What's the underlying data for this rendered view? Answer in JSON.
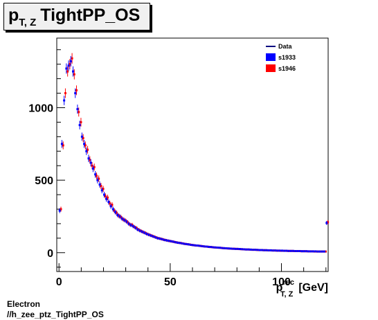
{
  "title": {
    "main": "p",
    "sub": "T, Z",
    "rest": "TightPP_OS"
  },
  "footer": {
    "line1": "Electron",
    "line2": "//h_zee_ptz_TightPP_OS"
  },
  "chart_data": {
    "type": "scatter",
    "xlabel": {
      "main": "p",
      "sup": "rec",
      "sub": "T, Z",
      "unit": "[GeV]"
    },
    "xlim": [
      -1,
      121
    ],
    "ylim": [
      -130,
      1480
    ],
    "x_ticks": [
      0,
      50,
      100
    ],
    "y_ticks": [
      0,
      500,
      1000
    ],
    "x_tick_labels": [
      "0",
      "50",
      "100"
    ],
    "y_tick_labels": [
      "0",
      "500",
      "1000"
    ],
    "legend": {
      "position": "top-right",
      "entries": [
        {
          "label": "Data",
          "style": "line",
          "color": "#000080"
        },
        {
          "label": "s1933",
          "style": "box",
          "color": "#0000ff"
        },
        {
          "label": "s1946",
          "style": "box",
          "color": "#ff0000"
        }
      ]
    },
    "series": [
      {
        "name": "s1933",
        "color": "#0000ff",
        "x": [
          0.5,
          1.5,
          2.5,
          3.5,
          4.5,
          5.5,
          6.5,
          7.5,
          8.5,
          9.5,
          10.5,
          11.5,
          12.5,
          13.5,
          14.5,
          15.5,
          16.5,
          17.5,
          18.5,
          19.5,
          20.5,
          21.5,
          22.5,
          23.5,
          24.5,
          25.5,
          26.5,
          27.5,
          28.5,
          29.5,
          30.5,
          31.5,
          32.5,
          33.5,
          34.5,
          35.5,
          36.5,
          37.5,
          38.5,
          39.5,
          40.5,
          41.5,
          42.5,
          43.5,
          44.5,
          45.5,
          46.5,
          47.5,
          48.5,
          49.5,
          50.5,
          51.5,
          52.5,
          53.5,
          54.5,
          55.5,
          56.5,
          57.5,
          58.5,
          59.5,
          60.5,
          61.5,
          62.5,
          63.5,
          64.5,
          65.5,
          66.5,
          67.5,
          68.5,
          69.5,
          70.5,
          71.5,
          72.5,
          73.5,
          74.5,
          75.5,
          76.5,
          77.5,
          78.5,
          79.5,
          80.5,
          81.5,
          82.5,
          83.5,
          84.5,
          85.5,
          86.5,
          87.5,
          88.5,
          89.5,
          90.5,
          91.5,
          92.5,
          93.5,
          94.5,
          95.5,
          96.5,
          97.5,
          98.5,
          99.5,
          100.5,
          101.5,
          102.5,
          103.5,
          104.5,
          105.5,
          106.5,
          107.5,
          108.5,
          109.5,
          110.5,
          111.5,
          112.5,
          113.5,
          114.5,
          115.5,
          116.5,
          117.5,
          118.5,
          119.5,
          120.5
        ],
        "values": [
          290,
          750,
          1050,
          1270,
          1290,
          1320,
          1250,
          1100,
          990,
          880,
          800,
          750,
          700,
          650,
          620,
          580,
          540,
          500,
          470,
          430,
          400,
          370,
          350,
          320,
          300,
          280,
          260,
          250,
          235,
          225,
          215,
          200,
          190,
          182,
          172,
          160,
          152,
          145,
          138,
          130,
          124,
          118,
          112,
          106,
          100,
          97,
          93,
          88,
          85,
          82,
          79,
          76,
          72,
          69,
          67,
          64,
          61,
          59,
          57,
          54,
          52,
          50,
          49,
          47,
          45,
          43,
          42,
          40,
          39,
          37,
          36,
          35,
          34,
          32,
          31,
          30,
          29,
          28,
          27,
          26,
          26,
          25,
          24,
          23,
          22,
          22,
          21,
          20,
          20,
          19,
          18,
          18,
          17,
          17,
          16,
          16,
          15,
          15,
          14,
          14,
          14,
          13,
          13,
          12,
          12,
          12,
          11,
          11,
          11,
          10,
          10,
          10,
          9,
          9,
          9,
          9,
          8,
          8,
          8,
          8,
          205
        ]
      },
      {
        "name": "s1946",
        "color": "#ff0000",
        "x": [
          0.5,
          1.5,
          2.5,
          3.5,
          4.5,
          5.5,
          6.5,
          7.5,
          8.5,
          9.5,
          10.5,
          11.5,
          12.5,
          13.5,
          14.5,
          15.5,
          16.5,
          17.5,
          18.5,
          19.5,
          20.5,
          21.5,
          22.5,
          23.5,
          24.5,
          25.5,
          26.5,
          27.5,
          28.5,
          29.5,
          30.5,
          31.5,
          32.5,
          33.5,
          34.5,
          35.5,
          36.5,
          37.5,
          38.5,
          39.5,
          40.5,
          41.5,
          42.5,
          43.5,
          44.5,
          45.5,
          46.5,
          47.5,
          48.5,
          49.5,
          50.5,
          51.5,
          52.5,
          53.5,
          54.5,
          55.5,
          56.5,
          57.5,
          58.5,
          59.5,
          60.5,
          61.5,
          62.5,
          63.5,
          64.5,
          65.5,
          66.5,
          67.5,
          68.5,
          69.5,
          70.5,
          71.5,
          72.5,
          73.5,
          74.5,
          75.5,
          76.5,
          77.5,
          78.5,
          79.5,
          80.5,
          81.5,
          82.5,
          83.5,
          84.5,
          85.5,
          86.5,
          87.5,
          88.5,
          89.5,
          90.5,
          91.5,
          92.5,
          93.5,
          94.5,
          95.5,
          96.5,
          97.5,
          98.5,
          99.5,
          100.5,
          101.5,
          102.5,
          103.5,
          104.5,
          105.5,
          106.5,
          107.5,
          108.5,
          109.5,
          110.5,
          111.5,
          112.5,
          113.5,
          114.5,
          115.5,
          116.5,
          117.5,
          118.5,
          119.5,
          120.5
        ],
        "values": [
          300,
          740,
          1100,
          1250,
          1300,
          1340,
          1230,
          1120,
          970,
          900,
          790,
          740,
          710,
          640,
          600,
          590,
          530,
          510,
          460,
          440,
          390,
          380,
          340,
          330,
          290,
          275,
          255,
          245,
          230,
          222,
          210,
          195,
          192,
          178,
          170,
          158,
          150,
          142,
          136,
          128,
          122,
          116,
          110,
          104,
          99,
          95,
          91,
          87,
          83,
          80,
          77,
          74,
          71,
          68,
          66,
          63,
          60,
          58,
          56,
          53,
          51,
          49,
          48,
          46,
          44,
          42,
          41,
          39,
          38,
          36,
          35,
          34,
          33,
          31,
          30,
          29,
          28,
          27,
          27,
          26,
          25,
          24,
          23,
          22,
          22,
          21,
          20,
          20,
          19,
          18,
          18,
          17,
          17,
          16,
          16,
          15,
          15,
          14,
          14,
          13,
          13,
          13,
          12,
          12,
          12,
          11,
          11,
          11,
          10,
          10,
          10,
          9,
          9,
          9,
          8,
          8,
          8,
          8,
          8,
          8,
          210
        ]
      }
    ]
  }
}
